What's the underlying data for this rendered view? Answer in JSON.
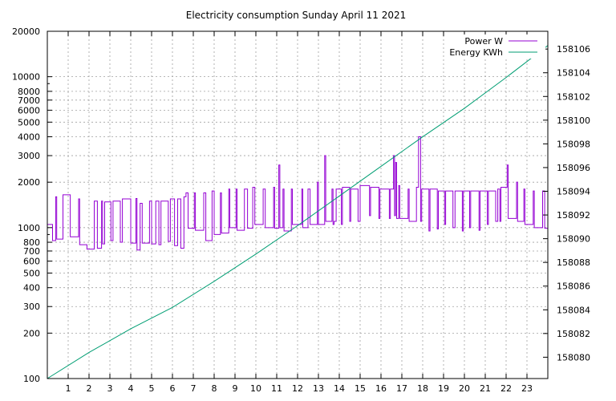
{
  "chart_data": {
    "type": "line",
    "title": "Electricity consumption Sunday April 11 2021",
    "xlabel": "",
    "ylabel": "",
    "y2label": "",
    "grid": true,
    "legend_position": "top-right",
    "x_range": [
      0,
      24
    ],
    "x_ticks": [
      "1",
      "2",
      "3",
      "4",
      "5",
      "6",
      "7",
      "8",
      "9",
      "10",
      "11",
      "12",
      "13",
      "14",
      "15",
      "16",
      "17",
      "18",
      "19",
      "20",
      "21",
      "22",
      "23"
    ],
    "y_scale": "log",
    "y_range": [
      100,
      20000
    ],
    "y_ticks": [
      "100",
      "200",
      "300",
      "400",
      "500",
      "600",
      "700",
      "800",
      "1000",
      "2000",
      "3000",
      "4000",
      "5000",
      "6000",
      "7000",
      "8000",
      "10000",
      "20000"
    ],
    "y2_range": [
      158078.2,
      158107.5
    ],
    "y2_ticks": [
      "158080",
      "158082",
      "158084",
      "158086",
      "158088",
      "158090",
      "158092",
      "158094",
      "158096",
      "158098",
      "158100",
      "158102",
      "158104",
      "158106"
    ],
    "series": [
      {
        "name": "Power W",
        "axis": "left",
        "color": "#9400d3",
        "x": [
          0.0,
          0.25,
          0.4,
          0.45,
          0.65,
          0.75,
          1.1,
          1.5,
          1.55,
          1.85,
          1.9,
          2.25,
          2.4,
          2.6,
          2.65,
          2.75,
          3.05,
          3.15,
          3.5,
          3.6,
          3.9,
          4.0,
          4.25,
          4.3,
          4.45,
          4.55,
          4.9,
          5.0,
          5.2,
          5.35,
          5.45,
          5.8,
          5.9,
          6.1,
          6.25,
          6.4,
          6.55,
          6.65,
          6.75,
          7.05,
          7.1,
          7.5,
          7.6,
          7.9,
          8.0,
          8.3,
          8.35,
          8.7,
          8.75,
          9.05,
          9.1,
          9.45,
          9.6,
          9.85,
          9.95,
          10.35,
          10.45,
          10.85,
          10.9,
          11.1,
          11.15,
          11.3,
          11.35,
          11.7,
          11.75,
          12.2,
          12.25,
          12.5,
          12.6,
          12.95,
          13.0,
          13.3,
          13.35,
          13.65,
          13.7,
          13.75,
          13.85,
          14.1,
          14.15,
          14.5,
          14.55,
          14.9,
          15.0,
          15.45,
          15.5,
          15.9,
          15.95,
          16.4,
          16.45,
          16.6,
          16.65,
          16.7,
          16.75,
          16.85,
          16.9,
          17.3,
          17.35,
          17.7,
          17.8,
          17.9,
          17.95,
          18.3,
          18.35,
          18.7,
          18.75,
          19.05,
          19.1,
          19.45,
          19.55,
          19.9,
          19.95,
          20.25,
          20.3,
          20.7,
          20.75,
          21.1,
          21.15,
          21.5,
          21.6,
          21.7,
          21.75,
          22.05,
          22.1,
          22.5,
          22.55,
          22.85,
          22.9,
          23.3,
          23.35,
          23.75,
          23.85,
          24.0
        ],
        "values": [
          1050,
          820,
          1600,
          840,
          840,
          1650,
          870,
          1550,
          770,
          770,
          720,
          1500,
          730,
          1500,
          780,
          1480,
          820,
          1500,
          800,
          1550,
          1550,
          790,
          1560,
          710,
          1450,
          790,
          1500,
          780,
          1500,
          770,
          1500,
          810,
          1550,
          760,
          1550,
          730,
          1600,
          1700,
          990,
          1700,
          960,
          1700,
          820,
          1750,
          900,
          1700,
          920,
          1800,
          1000,
          1800,
          960,
          1800,
          990,
          1850,
          1050,
          1800,
          1000,
          1850,
          990,
          2600,
          1000,
          1800,
          950,
          1800,
          1050,
          1800,
          1000,
          1800,
          1050,
          2000,
          1050,
          3000,
          1100,
          1800,
          1050,
          1100,
          1800,
          1050,
          1850,
          1100,
          1800,
          1100,
          1900,
          1200,
          1850,
          1150,
          1800,
          1150,
          1800,
          3000,
          1200,
          2700,
          1150,
          1900,
          1150,
          1800,
          1100,
          1850,
          4000,
          1100,
          1800,
          950,
          1800,
          980,
          1750,
          1050,
          1750,
          1000,
          1750,
          950,
          1750,
          1000,
          1750,
          960,
          1750,
          1050,
          1750,
          1100,
          1800,
          1100,
          1850,
          2600,
          1150,
          2000,
          1100,
          1800,
          1050,
          1750,
          1000,
          1750,
          990,
          1000
        ]
      },
      {
        "name": "Energy KWh",
        "axis": "right",
        "color": "#009e73",
        "x": [
          0.0,
          2.0,
          4.0,
          6.0,
          8.0,
          10.0,
          12.0,
          14.0,
          16.0,
          18.0,
          20.0,
          22.0,
          24.0
        ],
        "values": [
          158078.2,
          158080.4,
          158082.4,
          158084.2,
          158086.4,
          158088.7,
          158091.1,
          158093.6,
          158096.1,
          158098.6,
          158101.0,
          158103.6,
          158106.3
        ]
      }
    ]
  }
}
